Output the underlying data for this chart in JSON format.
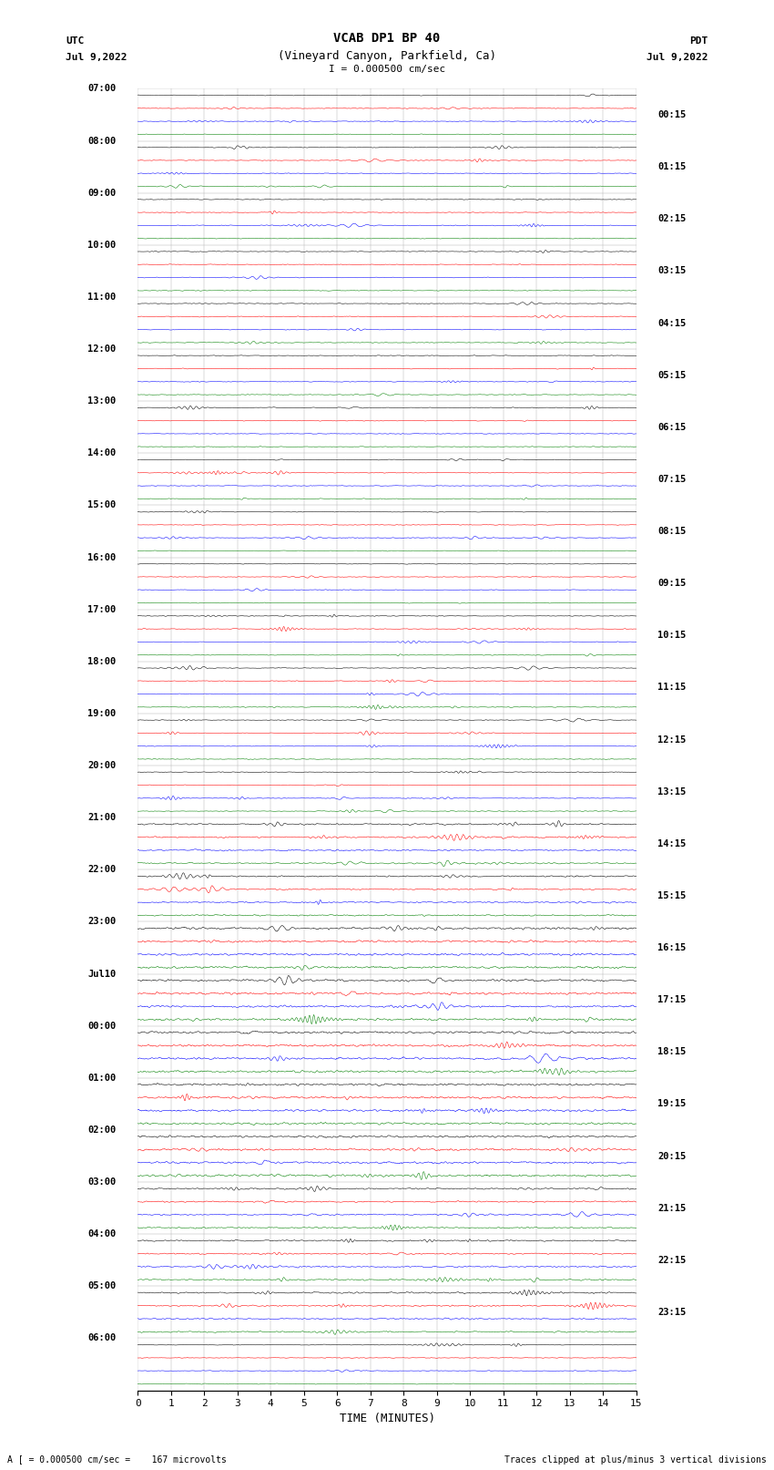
{
  "title_line1": "VCAB DP1 BP 40",
  "title_line2": "(Vineyard Canyon, Parkfield, Ca)",
  "title_line3": "I = 0.000500 cm/sec",
  "left_header_line1": "UTC",
  "left_header_line2": "Jul 9,2022",
  "right_header_line1": "PDT",
  "right_header_line2": "Jul 9,2022",
  "xlabel": "TIME (MINUTES)",
  "footer_left": "A [ = 0.000500 cm/sec =    167 microvolts",
  "footer_right": "Traces clipped at plus/minus 3 vertical divisions",
  "utc_labels": [
    "07:00",
    "08:00",
    "09:00",
    "10:00",
    "11:00",
    "12:00",
    "13:00",
    "14:00",
    "15:00",
    "16:00",
    "17:00",
    "18:00",
    "19:00",
    "20:00",
    "21:00",
    "22:00",
    "23:00",
    "Jul10",
    "00:00",
    "01:00",
    "02:00",
    "03:00",
    "04:00",
    "05:00",
    "06:00"
  ],
  "pdt_labels": [
    "00:15",
    "01:15",
    "02:15",
    "03:15",
    "04:15",
    "05:15",
    "06:15",
    "07:15",
    "08:15",
    "09:15",
    "10:15",
    "11:15",
    "12:15",
    "13:15",
    "14:15",
    "15:15",
    "16:15",
    "17:15",
    "18:15",
    "19:15",
    "20:15",
    "21:15",
    "22:15",
    "23:15"
  ],
  "trace_colors": [
    "black",
    "red",
    "blue",
    "green"
  ],
  "n_hours": 25,
  "traces_per_hour": 4,
  "xlim": [
    0,
    15
  ],
  "xticks": [
    0,
    1,
    2,
    3,
    4,
    5,
    6,
    7,
    8,
    9,
    10,
    11,
    12,
    13,
    14,
    15
  ],
  "bg_color": "white",
  "grid_color": "#aaaaaa",
  "minutes": 15,
  "n_samples": 1500,
  "high_activity_hours": [
    16,
    17,
    18,
    19,
    20
  ],
  "medium_activity_hours": [
    14,
    15,
    21,
    22,
    23
  ]
}
